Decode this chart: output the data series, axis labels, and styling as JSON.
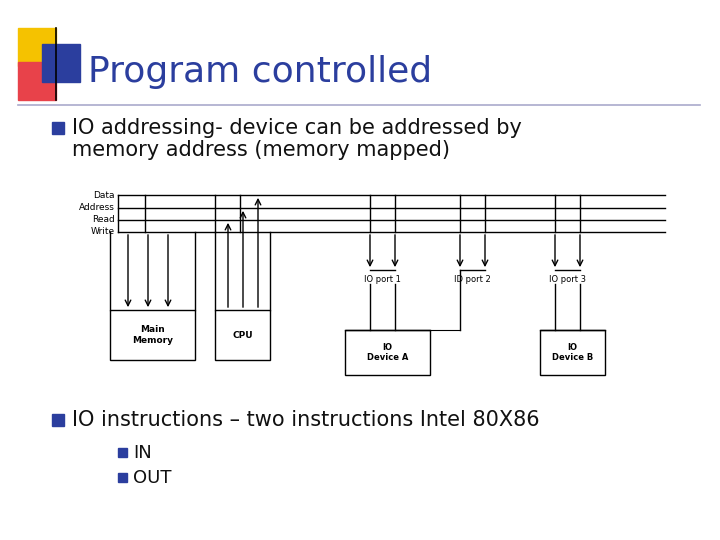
{
  "title": "Program controlled",
  "title_color": "#2B3E9E",
  "title_fontsize": 26,
  "bg_color": "#FFFFFF",
  "bullet_color": "#2B3E9E",
  "bullet1_line1": "IO addressing- device can be addressed by",
  "bullet1_line2": "memory address (memory mapped)",
  "bullet2": "IO instructions – two instructions Intel 80X86",
  "sub_bullet1": "IN",
  "sub_bullet2": "OUT",
  "bullet_fontsize": 15,
  "sub_bullet_fontsize": 13,
  "bus_labels": [
    "Data",
    "Address",
    "Read",
    "Write"
  ],
  "diagram_color": "#000000",
  "port_labels": [
    "IO port 1",
    "ID port 2",
    "IO port 3"
  ],
  "sq_yellow": "#F5C200",
  "sq_red": "#E8424A",
  "sq_blue": "#2B3E9E"
}
